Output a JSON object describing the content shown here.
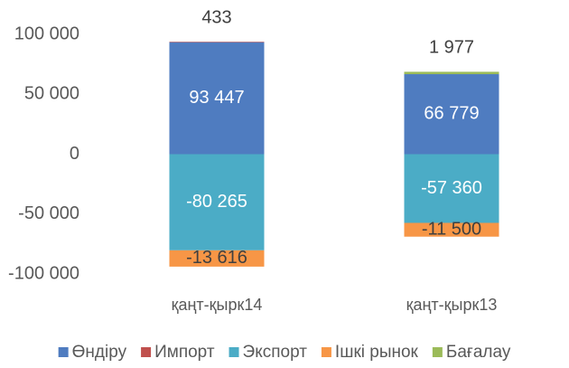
{
  "chart_data": {
    "type": "stacked-bar",
    "categories": [
      "қаңт-қырк14",
      "қаңт-қырк13"
    ],
    "series": [
      {
        "name": "Өндіру",
        "color": "#4f7cc0",
        "values": [
          93447,
          66779
        ],
        "value_labels": [
          "93 447",
          "66 779"
        ]
      },
      {
        "name": "Импорт",
        "color": "#c0504d",
        "values": [
          433,
          null
        ],
        "value_labels": [
          "433",
          null
        ]
      },
      {
        "name": "Экспорт",
        "color": "#4bacc6",
        "values": [
          -80265,
          -57360
        ],
        "value_labels": [
          "-80 265",
          "-57 360"
        ]
      },
      {
        "name": "Ішкі рынок",
        "color": "#f79646",
        "values": [
          -13616,
          -11500
        ],
        "value_labels": [
          "-13 616",
          "-11 500"
        ]
      },
      {
        "name": "Бағалау",
        "color": "#9bbb59",
        "values": [
          null,
          1977
        ],
        "value_labels": [
          null,
          "1 977"
        ]
      }
    ],
    "ylim": [
      -100000,
      100000
    ],
    "yticks": [
      {
        "value": -100000,
        "label": "-100 000"
      },
      {
        "value": -50000,
        "label": "-50 000"
      },
      0,
      {
        "value": 50000,
        "label": "50 000"
      },
      {
        "value": 100000,
        "label": "100 000"
      }
    ],
    "grid": false,
    "legend": "bottom"
  }
}
